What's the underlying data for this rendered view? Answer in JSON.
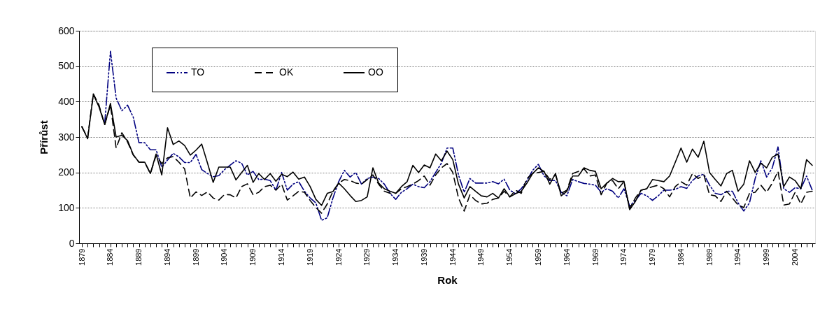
{
  "chart_data": {
    "type": "line",
    "xlabel": "Rok",
    "ylabel": "Přírůst",
    "categories": [
      "1879",
      null,
      null,
      null,
      null,
      "1884",
      null,
      null,
      null,
      null,
      "1889",
      null,
      null,
      null,
      null,
      "1894",
      null,
      null,
      null,
      null,
      "1899",
      null,
      null,
      null,
      null,
      "1904",
      null,
      null,
      null,
      null,
      "1909",
      null,
      null,
      null,
      null,
      "1914",
      null,
      null,
      null,
      null,
      "1919",
      null,
      null,
      null,
      null,
      "1924",
      null,
      null,
      null,
      null,
      "1929",
      null,
      null,
      null,
      null,
      "1934",
      null,
      null,
      null,
      null,
      "1939",
      null,
      null,
      null,
      null,
      "1944",
      null,
      null,
      null,
      null,
      "1949",
      null,
      null,
      null,
      null,
      "1954",
      null,
      null,
      null,
      null,
      "1959",
      null,
      null,
      null,
      null,
      "1964",
      null,
      null,
      null,
      null,
      "1969",
      null,
      null,
      null,
      null,
      "1974",
      null,
      null,
      null,
      null,
      "1979",
      null,
      null,
      null,
      null,
      "1984",
      null,
      null,
      null,
      null,
      "1989",
      null,
      null,
      null,
      null,
      "1994",
      null,
      null,
      null,
      null,
      "1999",
      null,
      null,
      null,
      null,
      "2004",
      null,
      null,
      null
    ],
    "series": [
      {
        "name": "TO",
        "color": "#000080",
        "line_style": "dotted",
        "values": [
          null,
          null,
          null,
          null,
          340,
          542,
          410,
          374,
          390,
          356,
          284,
          284,
          264,
          264,
          215,
          235,
          254,
          244,
          228,
          228,
          251,
          208,
          197,
          188,
          191,
          208,
          221,
          233,
          226,
          193,
          203,
          180,
          181,
          177,
          150,
          200,
          150,
          167,
          174,
          147,
          128,
          114,
          65,
          72,
          128,
          174,
          206,
          187,
          200,
          167,
          183,
          187,
          183,
          167,
          141,
          124,
          144,
          154,
          167,
          160,
          157,
          174,
          200,
          226,
          269,
          269,
          193,
          144,
          183,
          170,
          170,
          170,
          174,
          168,
          181,
          150,
          140,
          154,
          177,
          206,
          223,
          190,
          177,
          177,
          144,
          134,
          180,
          174,
          169,
          167,
          164,
          144,
          154,
          147,
          128,
          154,
          105,
          121,
          141,
          134,
          121,
          134,
          150,
          150,
          152,
          160,
          155,
          177,
          190,
          195,
          164,
          141,
          137,
          147,
          147,
          114,
          91,
          114,
          183,
          233,
          187,
          213,
          272,
          154,
          144,
          157,
          154,
          190,
          150
        ]
      },
      {
        "name": "OK",
        "color": "#000000",
        "line_style": "dashed",
        "values": [
          328,
          298,
          422,
          390,
          335,
          390,
          269,
          312,
          286,
          249,
          229,
          229,
          197,
          248,
          225,
          241,
          245,
          229,
          210,
          128,
          145,
          135,
          145,
          128,
          122,
          138,
          137,
          128,
          160,
          168,
          137,
          144,
          160,
          164,
          150,
          167,
          122,
          134,
          147,
          144,
          121,
          101,
          85,
          111,
          147,
          170,
          180,
          177,
          170,
          167,
          180,
          193,
          167,
          147,
          141,
          141,
          154,
          160,
          167,
          177,
          190,
          164,
          193,
          213,
          225,
          200,
          128,
          91,
          137,
          121,
          111,
          113,
          124,
          128,
          147,
          131,
          150,
          141,
          183,
          197,
          200,
          203,
          180,
          193,
          141,
          150,
          197,
          203,
          210,
          190,
          193,
          137,
          170,
          177,
          154,
          174,
          98,
          128,
          150,
          154,
          160,
          164,
          154,
          131,
          160,
          174,
          164,
          197,
          183,
          193,
          137,
          134,
          118,
          147,
          128,
          108,
          101,
          141,
          144,
          164,
          144,
          170,
          203,
          108,
          111,
          144,
          111,
          144,
          147
        ]
      },
      {
        "name": "OO",
        "color": "#000000",
        "line_style": "solid",
        "values": [
          330,
          295,
          420,
          385,
          335,
          395,
          300,
          305,
          290,
          250,
          229,
          229,
          197,
          252,
          193,
          326,
          279,
          289,
          276,
          249,
          263,
          280,
          227,
          172,
          215,
          215,
          215,
          179,
          200,
          220,
          172,
          197,
          180,
          197,
          175,
          195,
          188,
          201,
          181,
          187,
          160,
          124,
          107,
          141,
          146,
          170,
          154,
          135,
          118,
          121,
          131,
          213,
          170,
          154,
          147,
          141,
          160,
          174,
          220,
          200,
          221,
          213,
          252,
          233,
          260,
          236,
          167,
          128,
          160,
          147,
          134,
          131,
          141,
          128,
          154,
          131,
          140,
          147,
          170,
          197,
          213,
          203,
          167,
          197,
          134,
          147,
          190,
          190,
          213,
          206,
          203,
          154,
          170,
          183,
          174,
          175,
          95,
          118,
          150,
          154,
          180,
          177,
          174,
          190,
          229,
          269,
          229,
          266,
          243,
          288,
          200,
          180,
          162,
          197,
          206,
          147,
          167,
          233,
          200,
          226,
          213,
          243,
          252,
          160,
          187,
          177,
          154,
          236,
          220
        ]
      }
    ],
    "ylim": [
      0,
      600
    ],
    "yticks": [
      0,
      100,
      200,
      300,
      400,
      500,
      600
    ],
    "grid": "y",
    "legend": "top",
    "marker": "none"
  }
}
